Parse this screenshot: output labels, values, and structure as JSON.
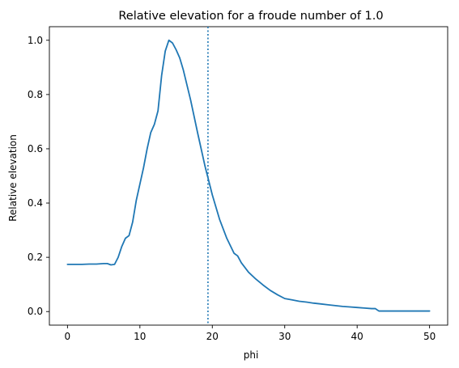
{
  "chart_data": {
    "type": "line",
    "title": "Relative elevation for a froude number of 1.0",
    "xlabel": "phi",
    "ylabel": "Relative elevation",
    "xlim": [
      -2.5,
      52.5
    ],
    "ylim": [
      -0.05,
      1.05
    ],
    "xticks": [
      0,
      10,
      20,
      30,
      40,
      50
    ],
    "yticks": [
      0.0,
      0.2,
      0.4,
      0.6,
      0.8,
      1.0
    ],
    "xtick_labels": [
      "0",
      "10",
      "20",
      "30",
      "40",
      "50"
    ],
    "ytick_labels": [
      "0.0",
      "0.2",
      "0.4",
      "0.6",
      "0.8",
      "1.0"
    ],
    "grid": false,
    "legend": "none",
    "vline": {
      "x": 19.4,
      "style": "dotted",
      "color": "#1f77b4"
    },
    "series": [
      {
        "color": "#1f77b4",
        "x": [
          0,
          1,
          2,
          3,
          4,
          5,
          5.5,
          6,
          6.5,
          7,
          7.5,
          8,
          8.5,
          9,
          9.5,
          10,
          10.5,
          11,
          11.5,
          12,
          12.5,
          13,
          13.5,
          14,
          14.5,
          15,
          15.5,
          16,
          17,
          18,
          19,
          20,
          21,
          22,
          23,
          23.5,
          24,
          25,
          26,
          27,
          28,
          29,
          30,
          31,
          32,
          33,
          34,
          35,
          36,
          37,
          38,
          39,
          40,
          41,
          42,
          42.5,
          43,
          44,
          45,
          46,
          47,
          48,
          49,
          50
        ],
        "y": [
          0.174,
          0.174,
          0.174,
          0.175,
          0.175,
          0.177,
          0.177,
          0.172,
          0.174,
          0.2,
          0.24,
          0.27,
          0.28,
          0.33,
          0.41,
          0.47,
          0.53,
          0.6,
          0.66,
          0.69,
          0.74,
          0.87,
          0.96,
          1.0,
          0.99,
          0.965,
          0.935,
          0.89,
          0.78,
          0.655,
          0.535,
          0.43,
          0.34,
          0.27,
          0.215,
          0.205,
          0.18,
          0.145,
          0.12,
          0.098,
          0.078,
          0.062,
          0.048,
          0.043,
          0.038,
          0.035,
          0.031,
          0.028,
          0.025,
          0.022,
          0.019,
          0.017,
          0.015,
          0.013,
          0.011,
          0.011,
          0.002,
          0.002,
          0.002,
          0.002,
          0.002,
          0.002,
          0.002,
          0.002
        ]
      }
    ]
  }
}
